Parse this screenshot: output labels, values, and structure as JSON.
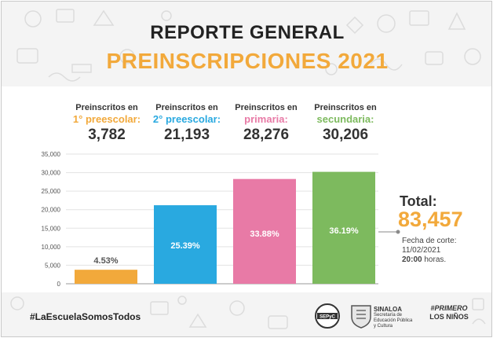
{
  "header": {
    "title": "REPORTE GENERAL",
    "subtitle": "PREINSCRIPCIONES 2021",
    "subtitle_color": "#f2a93b"
  },
  "stats": [
    {
      "line1": "Preinscritos en",
      "line2": "1° preescolar:",
      "value": "3,782",
      "color": "#f2a93b"
    },
    {
      "line1": "Preinscritos en",
      "line2": "2° preescolar:",
      "value": "21,193",
      "color": "#29a9e0"
    },
    {
      "line1": "Preinscritos en",
      "line2": "primaria:",
      "value": "28,276",
      "color": "#e87aa6"
    },
    {
      "line1": "Preinscritos en",
      "line2": "secundaria:",
      "value": "30,206",
      "color": "#7dba5e"
    }
  ],
  "chart_data": {
    "type": "bar",
    "categories": [
      "1° preescolar",
      "2° preescolar",
      "primaria",
      "secundaria"
    ],
    "values": [
      3782,
      21193,
      28276,
      30206
    ],
    "data_labels": [
      "4.53%",
      "25.39%",
      "33.88%",
      "36.19%"
    ],
    "colors": [
      "#f2a93b",
      "#29a9e0",
      "#e87aa6",
      "#7dba5e"
    ],
    "ylim": [
      0,
      35000
    ],
    "yticks": [
      0,
      5000,
      10000,
      15000,
      20000,
      25000,
      30000,
      35000
    ],
    "ytick_labels": [
      "0",
      "5,000",
      "10,000",
      "15,000",
      "20,000",
      "25,000",
      "30,000",
      "35,000"
    ],
    "grid": true,
    "title": "",
    "xlabel": "",
    "ylabel": ""
  },
  "total": {
    "label": "Total:",
    "value": "83,457",
    "value_color": "#f2a93b",
    "cut_label": "Fecha de corte:",
    "cut_date": "11/02/2021",
    "cut_time": "20:00",
    "cut_suffix": "horas."
  },
  "footer": {
    "hashtag": "#LaEscuelaSomosTodos",
    "logo_round_text": "SEPyC",
    "logo_gov_title": "SINALOA",
    "logo_gov_lines": [
      "Secretaría de",
      "Educación Pública",
      "y Cultura"
    ],
    "logo_brand_line1": "#PRIMERO",
    "logo_brand_line2": "LOS NIÑOS"
  }
}
